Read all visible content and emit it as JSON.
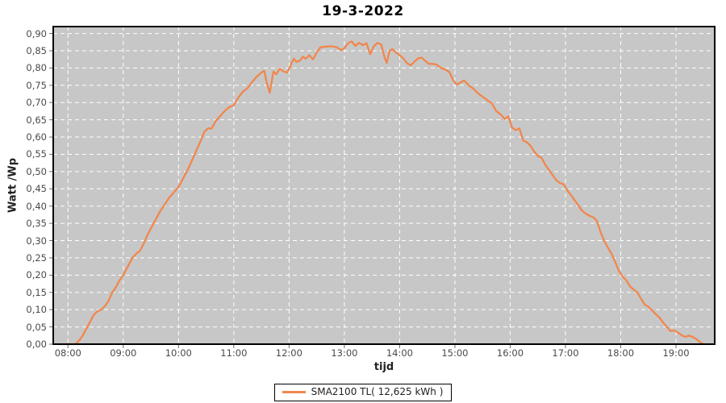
{
  "header": {
    "title": "19-3-2022"
  },
  "chart_data": {
    "type": "line",
    "title": "19-3-2022",
    "xlabel": "tijd",
    "ylabel": "Watt /Wp",
    "plot_background": "#c7c7c7",
    "grid": true,
    "grid_color": "#ffffff",
    "border_color": "#000000",
    "tick_color": "#707070",
    "xlim_minutes": [
      464,
      1182
    ],
    "ylim": [
      0,
      0.92
    ],
    "legend_position": "bottom-center",
    "x_ticks": [
      {
        "m": 480,
        "label": "08:00"
      },
      {
        "m": 540,
        "label": "09:00"
      },
      {
        "m": 600,
        "label": "10:00"
      },
      {
        "m": 660,
        "label": "11:00"
      },
      {
        "m": 720,
        "label": "12:00"
      },
      {
        "m": 780,
        "label": "13:00"
      },
      {
        "m": 840,
        "label": "14:00"
      },
      {
        "m": 900,
        "label": "15:00"
      },
      {
        "m": 960,
        "label": "16:00"
      },
      {
        "m": 1020,
        "label": "17:00"
      },
      {
        "m": 1080,
        "label": "18:00"
      },
      {
        "m": 1140,
        "label": "19:00"
      }
    ],
    "y_ticks": [
      {
        "v": 0.0,
        "label": "0,00"
      },
      {
        "v": 0.05,
        "label": "0,05"
      },
      {
        "v": 0.1,
        "label": "0,10"
      },
      {
        "v": 0.15,
        "label": "0,15"
      },
      {
        "v": 0.2,
        "label": "0,20"
      },
      {
        "v": 0.25,
        "label": "0,25"
      },
      {
        "v": 0.3,
        "label": "0,30"
      },
      {
        "v": 0.35,
        "label": "0,35"
      },
      {
        "v": 0.4,
        "label": "0,40"
      },
      {
        "v": 0.45,
        "label": "0,45"
      },
      {
        "v": 0.5,
        "label": "0,50"
      },
      {
        "v": 0.55,
        "label": "0,55"
      },
      {
        "v": 0.6,
        "label": "0,60"
      },
      {
        "v": 0.65,
        "label": "0,65"
      },
      {
        "v": 0.7,
        "label": "0,70"
      },
      {
        "v": 0.75,
        "label": "0,75"
      },
      {
        "v": 0.8,
        "label": "0,80"
      },
      {
        "v": 0.85,
        "label": "0,85"
      },
      {
        "v": 0.9,
        "label": "0,90"
      }
    ],
    "legend": {
      "label": "SMA2100 TL( 12,625 kWh )"
    },
    "series": [
      {
        "name": "SMA2100 TL( 12,625 kWh )",
        "color": "#f0874e",
        "points": [
          [
            "07:50",
            0.0
          ],
          [
            "07:56",
            0.0
          ],
          [
            "08:02",
            0.0
          ],
          [
            "08:08",
            0.0
          ],
          [
            "08:12",
            0.01
          ],
          [
            "08:16",
            0.025
          ],
          [
            "08:20",
            0.045
          ],
          [
            "08:24",
            0.065
          ],
          [
            "08:28",
            0.085
          ],
          [
            "08:32",
            0.095
          ],
          [
            "08:36",
            0.1
          ],
          [
            "08:40",
            0.11
          ],
          [
            "08:44",
            0.125
          ],
          [
            "08:48",
            0.15
          ],
          [
            "08:52",
            0.165
          ],
          [
            "08:56",
            0.185
          ],
          [
            "09:00",
            0.2
          ],
          [
            "09:05",
            0.225
          ],
          [
            "09:10",
            0.25
          ],
          [
            "09:14",
            0.262
          ],
          [
            "09:18",
            0.27
          ],
          [
            "09:22",
            0.29
          ],
          [
            "09:26",
            0.315
          ],
          [
            "09:30",
            0.335
          ],
          [
            "09:35",
            0.36
          ],
          [
            "09:40",
            0.385
          ],
          [
            "09:45",
            0.405
          ],
          [
            "09:50",
            0.425
          ],
          [
            "09:55",
            0.44
          ],
          [
            "10:00",
            0.455
          ],
          [
            "10:05",
            0.48
          ],
          [
            "10:10",
            0.505
          ],
          [
            "10:15",
            0.535
          ],
          [
            "10:20",
            0.565
          ],
          [
            "10:25",
            0.595
          ],
          [
            "10:28",
            0.615
          ],
          [
            "10:32",
            0.625
          ],
          [
            "10:36",
            0.625
          ],
          [
            "10:40",
            0.645
          ],
          [
            "10:45",
            0.66
          ],
          [
            "10:50",
            0.675
          ],
          [
            "10:55",
            0.687
          ],
          [
            "11:00",
            0.692
          ],
          [
            "11:05",
            0.715
          ],
          [
            "11:10",
            0.732
          ],
          [
            "11:15",
            0.742
          ],
          [
            "11:20",
            0.76
          ],
          [
            "11:25",
            0.775
          ],
          [
            "11:30",
            0.787
          ],
          [
            "11:33",
            0.792
          ],
          [
            "11:36",
            0.755
          ],
          [
            "11:39",
            0.728
          ],
          [
            "11:43",
            0.79
          ],
          [
            "11:46",
            0.782
          ],
          [
            "11:50",
            0.798
          ],
          [
            "11:54",
            0.79
          ],
          [
            "11:58",
            0.787
          ],
          [
            "12:02",
            0.81
          ],
          [
            "12:05",
            0.827
          ],
          [
            "12:08",
            0.818
          ],
          [
            "12:12",
            0.822
          ],
          [
            "12:15",
            0.833
          ],
          [
            "12:18",
            0.827
          ],
          [
            "12:22",
            0.837
          ],
          [
            "12:26",
            0.825
          ],
          [
            "12:30",
            0.845
          ],
          [
            "12:34",
            0.86
          ],
          [
            "12:40",
            0.862
          ],
          [
            "12:46",
            0.863
          ],
          [
            "12:52",
            0.86
          ],
          [
            "12:56",
            0.852
          ],
          [
            "13:00",
            0.857
          ],
          [
            "13:04",
            0.872
          ],
          [
            "13:08",
            0.877
          ],
          [
            "13:12",
            0.864
          ],
          [
            "13:16",
            0.873
          ],
          [
            "13:20",
            0.866
          ],
          [
            "13:24",
            0.872
          ],
          [
            "13:28",
            0.84
          ],
          [
            "13:32",
            0.863
          ],
          [
            "13:36",
            0.873
          ],
          [
            "13:40",
            0.868
          ],
          [
            "13:44",
            0.828
          ],
          [
            "13:46",
            0.815
          ],
          [
            "13:49",
            0.85
          ],
          [
            "13:52",
            0.855
          ],
          [
            "13:56",
            0.845
          ],
          [
            "14:00",
            0.837
          ],
          [
            "14:04",
            0.828
          ],
          [
            "14:08",
            0.814
          ],
          [
            "14:12",
            0.808
          ],
          [
            "14:16",
            0.818
          ],
          [
            "14:20",
            0.828
          ],
          [
            "14:24",
            0.83
          ],
          [
            "14:28",
            0.82
          ],
          [
            "14:32",
            0.812
          ],
          [
            "14:36",
            0.812
          ],
          [
            "14:40",
            0.81
          ],
          [
            "14:45",
            0.8
          ],
          [
            "14:50",
            0.795
          ],
          [
            "14:54",
            0.788
          ],
          [
            "14:58",
            0.765
          ],
          [
            "15:02",
            0.752
          ],
          [
            "15:06",
            0.758
          ],
          [
            "15:10",
            0.764
          ],
          [
            "15:15",
            0.75
          ],
          [
            "15:20",
            0.74
          ],
          [
            "15:25",
            0.727
          ],
          [
            "15:30",
            0.717
          ],
          [
            "15:35",
            0.707
          ],
          [
            "15:40",
            0.698
          ],
          [
            "15:45",
            0.675
          ],
          [
            "15:50",
            0.665
          ],
          [
            "15:54",
            0.652
          ],
          [
            "15:58",
            0.66
          ],
          [
            "16:02",
            0.628
          ],
          [
            "16:06",
            0.62
          ],
          [
            "16:10",
            0.625
          ],
          [
            "16:14",
            0.59
          ],
          [
            "16:18",
            0.585
          ],
          [
            "16:22",
            0.575
          ],
          [
            "16:26",
            0.558
          ],
          [
            "16:30",
            0.545
          ],
          [
            "16:34",
            0.54
          ],
          [
            "16:38",
            0.52
          ],
          [
            "16:42",
            0.505
          ],
          [
            "16:46",
            0.49
          ],
          [
            "16:50",
            0.475
          ],
          [
            "16:54",
            0.467
          ],
          [
            "16:58",
            0.463
          ],
          [
            "17:02",
            0.445
          ],
          [
            "17:06",
            0.432
          ],
          [
            "17:10",
            0.417
          ],
          [
            "17:14",
            0.402
          ],
          [
            "17:18",
            0.387
          ],
          [
            "17:22",
            0.378
          ],
          [
            "17:26",
            0.372
          ],
          [
            "17:30",
            0.368
          ],
          [
            "17:34",
            0.358
          ],
          [
            "17:38",
            0.325
          ],
          [
            "17:42",
            0.3
          ],
          [
            "17:46",
            0.28
          ],
          [
            "17:50",
            0.262
          ],
          [
            "17:54",
            0.238
          ],
          [
            "17:58",
            0.212
          ],
          [
            "18:02",
            0.196
          ],
          [
            "18:06",
            0.185
          ],
          [
            "18:10",
            0.168
          ],
          [
            "18:14",
            0.158
          ],
          [
            "18:18",
            0.15
          ],
          [
            "18:22",
            0.132
          ],
          [
            "18:26",
            0.115
          ],
          [
            "18:30",
            0.108
          ],
          [
            "18:34",
            0.098
          ],
          [
            "18:38",
            0.087
          ],
          [
            "18:42",
            0.077
          ],
          [
            "18:46",
            0.063
          ],
          [
            "18:50",
            0.05
          ],
          [
            "18:54",
            0.038
          ],
          [
            "18:58",
            0.04
          ],
          [
            "19:02",
            0.034
          ],
          [
            "19:06",
            0.026
          ],
          [
            "19:10",
            0.021
          ],
          [
            "19:14",
            0.025
          ],
          [
            "19:18",
            0.021
          ],
          [
            "19:22",
            0.015
          ],
          [
            "19:26",
            0.006
          ],
          [
            "19:29",
            0.001
          ]
        ]
      }
    ]
  }
}
